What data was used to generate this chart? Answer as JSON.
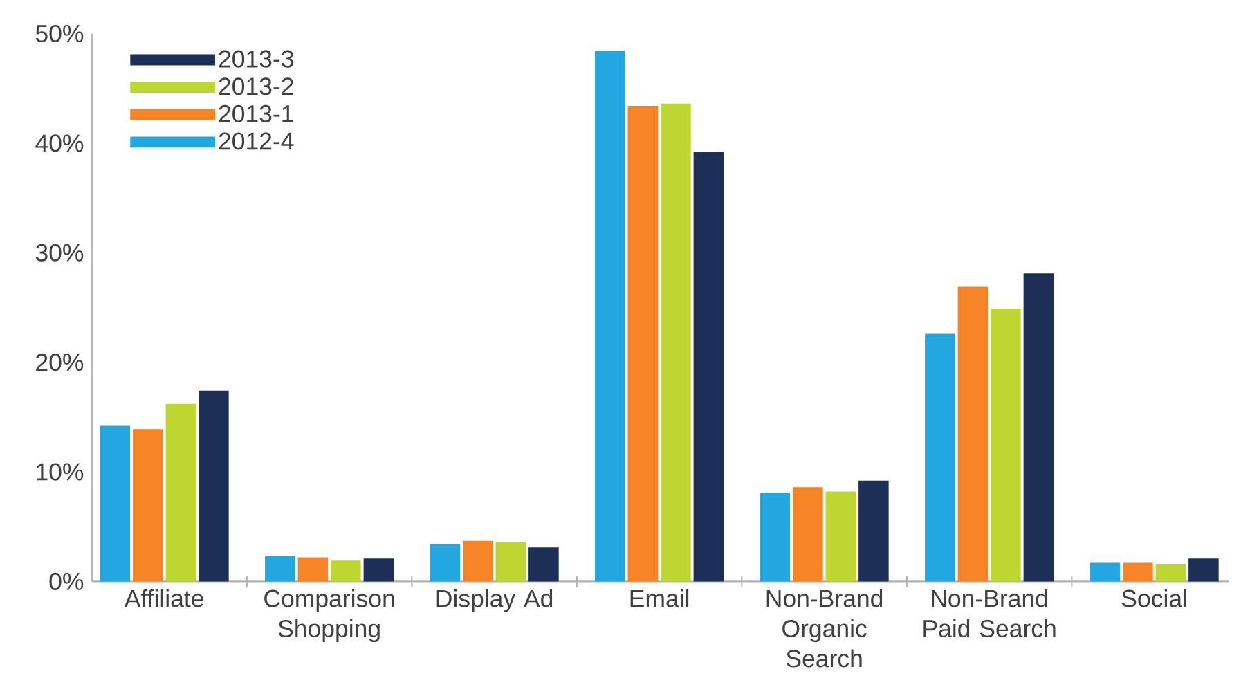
{
  "chart_data": {
    "type": "bar",
    "categories": [
      "Affiliate",
      "Comparison Shopping",
      "Display Ad",
      "Email",
      "Non-Brand Organic Search",
      "Non-Brand Paid Search",
      "Social"
    ],
    "series": [
      {
        "name": "2012-4",
        "color": "#22a7e0",
        "values": [
          14.2,
          2.3,
          3.4,
          48.4,
          8.1,
          22.6,
          1.7
        ]
      },
      {
        "name": "2013-1",
        "color": "#f58426",
        "values": [
          13.9,
          2.2,
          3.7,
          43.4,
          8.6,
          26.9,
          1.7
        ]
      },
      {
        "name": "2013-2",
        "color": "#bed630",
        "values": [
          16.2,
          1.9,
          3.6,
          43.6,
          8.2,
          24.9,
          1.6
        ]
      },
      {
        "name": "2013-3",
        "color": "#1c2f59",
        "values": [
          17.4,
          2.1,
          3.1,
          39.2,
          9.2,
          28.1,
          2.1
        ]
      }
    ],
    "ylim": [
      0,
      50
    ],
    "yticks": [
      {
        "value": 0,
        "label": "0%"
      },
      {
        "value": 10,
        "label": "10%"
      },
      {
        "value": 20,
        "label": "20%"
      },
      {
        "value": 30,
        "label": "30%"
      },
      {
        "value": 40,
        "label": "40%"
      },
      {
        "value": 50,
        "label": "50%"
      }
    ],
    "legend": "top left"
  }
}
